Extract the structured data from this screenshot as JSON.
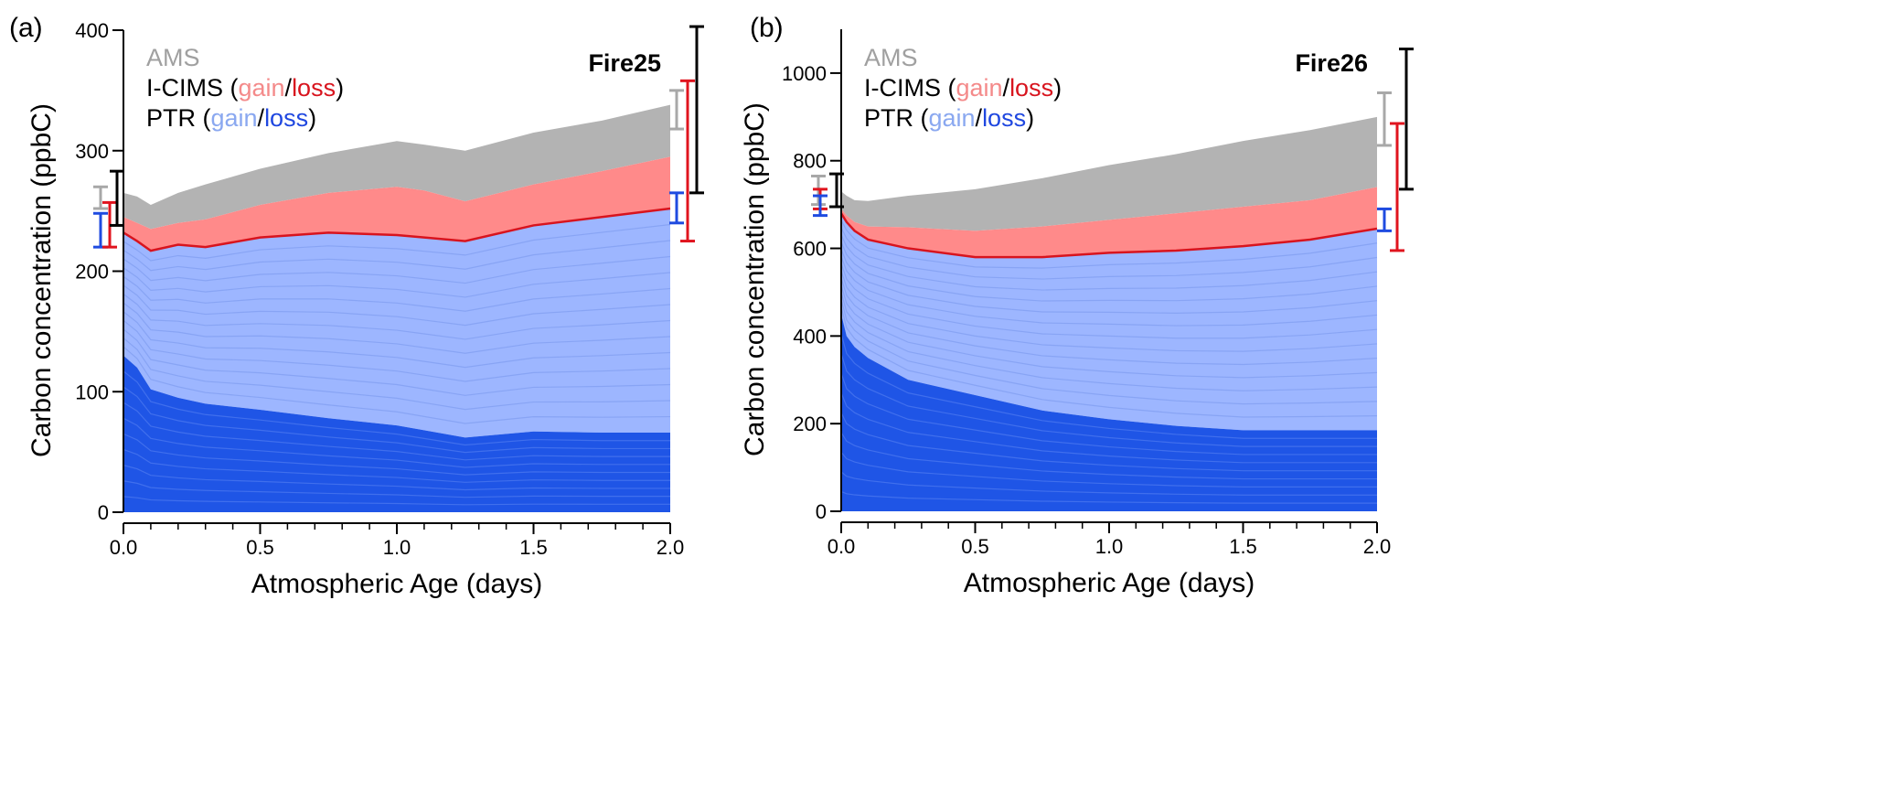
{
  "colors": {
    "ams": "#b3b3b3",
    "icims_gain": "#ff8a8a",
    "icims_loss": "#d8141e",
    "ptr_gain": "#9db6ff",
    "ptr_loss": "#1f55e6",
    "total_err": "#000000"
  },
  "chart_data": [
    {
      "type": "area",
      "panel_label": "(a)",
      "annotation": "Fire25",
      "xlabel": "Atmospheric Age (days)",
      "ylabel": "Carbon concentration (ppbC)",
      "xlim": [
        0,
        2.0
      ],
      "ylim": [
        0,
        400
      ],
      "xticks": [
        "0.0",
        "0.5",
        "1.0",
        "1.5",
        "2.0"
      ],
      "yticks": [
        "0",
        "100",
        "200",
        "300",
        "400"
      ],
      "legend": {
        "placement": "top-left",
        "ams": "AMS",
        "icims": "I-CIMS",
        "ptr": "PTR",
        "gain": "gain",
        "loss": "loss",
        "open": " (",
        "sep": "/",
        "close": ")"
      },
      "x": [
        0,
        0.05,
        0.1,
        0.2,
        0.3,
        0.5,
        0.75,
        1.0,
        1.1,
        1.25,
        1.5,
        1.75,
        2.0
      ],
      "series": [
        {
          "key": "ptr_loss",
          "values": [
            130,
            120,
            102,
            95,
            90,
            85,
            78,
            72,
            68,
            62,
            67,
            66,
            66
          ]
        },
        {
          "key": "ptr_total",
          "values": [
            232,
            225,
            217,
            222,
            220,
            228,
            232,
            230,
            228,
            225,
            238,
            245,
            252
          ]
        },
        {
          "key": "icims_total",
          "values": [
            245,
            240,
            235,
            240,
            243,
            255,
            265,
            270,
            267,
            258,
            272,
            283,
            295
          ]
        },
        {
          "key": "ams_total",
          "values": [
            265,
            262,
            255,
            265,
            272,
            285,
            298,
            308,
            305,
            300,
            315,
            325,
            338
          ]
        }
      ],
      "error_bars": {
        "start": [
          {
            "key": "ams",
            "range": [
              252,
              270
            ]
          },
          {
            "key": "ptr",
            "range": [
              220,
              248
            ]
          },
          {
            "key": "icims",
            "range": [
              220,
              257
            ]
          },
          {
            "key": "total",
            "range": [
              238,
              283
            ]
          }
        ],
        "end": [
          {
            "key": "ams",
            "range": [
              318,
              350
            ]
          },
          {
            "key": "ptr",
            "range": [
              240,
              265
            ]
          },
          {
            "key": "icims",
            "range": [
              225,
              358
            ]
          },
          {
            "key": "total",
            "range": [
              265,
              403
            ]
          }
        ]
      }
    },
    {
      "type": "area",
      "panel_label": "(b)",
      "annotation": "Fire26",
      "xlabel": "Atmospheric Age (days)",
      "ylabel": "Carbon concentration (ppbC)",
      "xlim": [
        0,
        2.0
      ],
      "ylim": [
        0,
        1100
      ],
      "xticks": [
        "0.0",
        "0.5",
        "1.0",
        "1.5",
        "2.0"
      ],
      "yticks": [
        "0",
        "200",
        "400",
        "600",
        "800",
        "1000"
      ],
      "legend": {
        "placement": "top-left",
        "ams": "AMS",
        "icims": "I-CIMS",
        "ptr": "PTR",
        "gain": "gain",
        "loss": "loss",
        "open": " (",
        "sep": "/",
        "close": ")"
      },
      "x": [
        0,
        0.02,
        0.05,
        0.1,
        0.25,
        0.5,
        0.75,
        1.0,
        1.25,
        1.5,
        1.75,
        2.0
      ],
      "series": [
        {
          "key": "ptr_loss",
          "values": [
            450,
            400,
            375,
            350,
            300,
            265,
            230,
            210,
            195,
            185,
            185,
            185
          ]
        },
        {
          "key": "ptr_total",
          "values": [
            680,
            660,
            640,
            620,
            600,
            580,
            580,
            590,
            595,
            605,
            620,
            645
          ]
        },
        {
          "key": "icims_total",
          "values": [
            690,
            675,
            660,
            650,
            648,
            640,
            650,
            665,
            680,
            695,
            710,
            740
          ]
        },
        {
          "key": "ams_total",
          "values": [
            730,
            720,
            710,
            708,
            720,
            735,
            760,
            790,
            815,
            845,
            870,
            900
          ]
        }
      ],
      "error_bars": {
        "start": [
          {
            "key": "ams",
            "range": [
              700,
              765
            ]
          },
          {
            "key": "icims",
            "range": [
              690,
              735
            ]
          },
          {
            "key": "ptr",
            "range": [
              675,
              720
            ]
          },
          {
            "key": "total",
            "range": [
              695,
              770
            ]
          }
        ],
        "end": [
          {
            "key": "ams",
            "range": [
              835,
              955
            ]
          },
          {
            "key": "ptr",
            "range": [
              640,
              690
            ]
          },
          {
            "key": "icims",
            "range": [
              595,
              885
            ]
          },
          {
            "key": "total",
            "range": [
              735,
              1055
            ]
          }
        ]
      }
    }
  ]
}
